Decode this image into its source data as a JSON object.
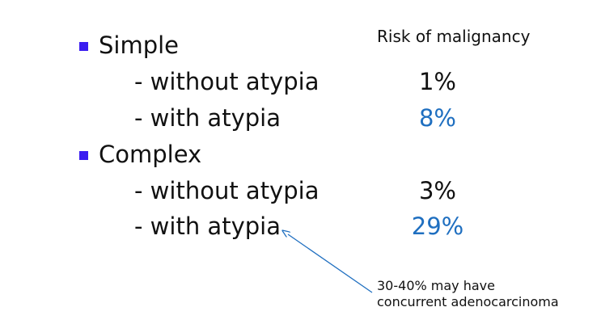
{
  "header": {
    "risk_column_title": "Risk of malignancy"
  },
  "groups": [
    {
      "label": "Simple",
      "rows": [
        {
          "label": "- without atypia",
          "risk": "1%",
          "highlight": false
        },
        {
          "label": "- with atypia",
          "risk": "8%",
          "highlight": true
        }
      ]
    },
    {
      "label": "Complex",
      "rows": [
        {
          "label": "- without atypia",
          "risk": "3%",
          "highlight": false
        },
        {
          "label": "- with atypia",
          "risk": "29%",
          "highlight": true
        }
      ]
    }
  ],
  "annotation": {
    "line1": "30-40% may have",
    "line2": "concurrent adenocarcinoma"
  },
  "colors": {
    "bullet": "#3a1cf0",
    "text": "#111111",
    "highlight": "#1f6fc0",
    "arrow": "#1f6fc0"
  }
}
